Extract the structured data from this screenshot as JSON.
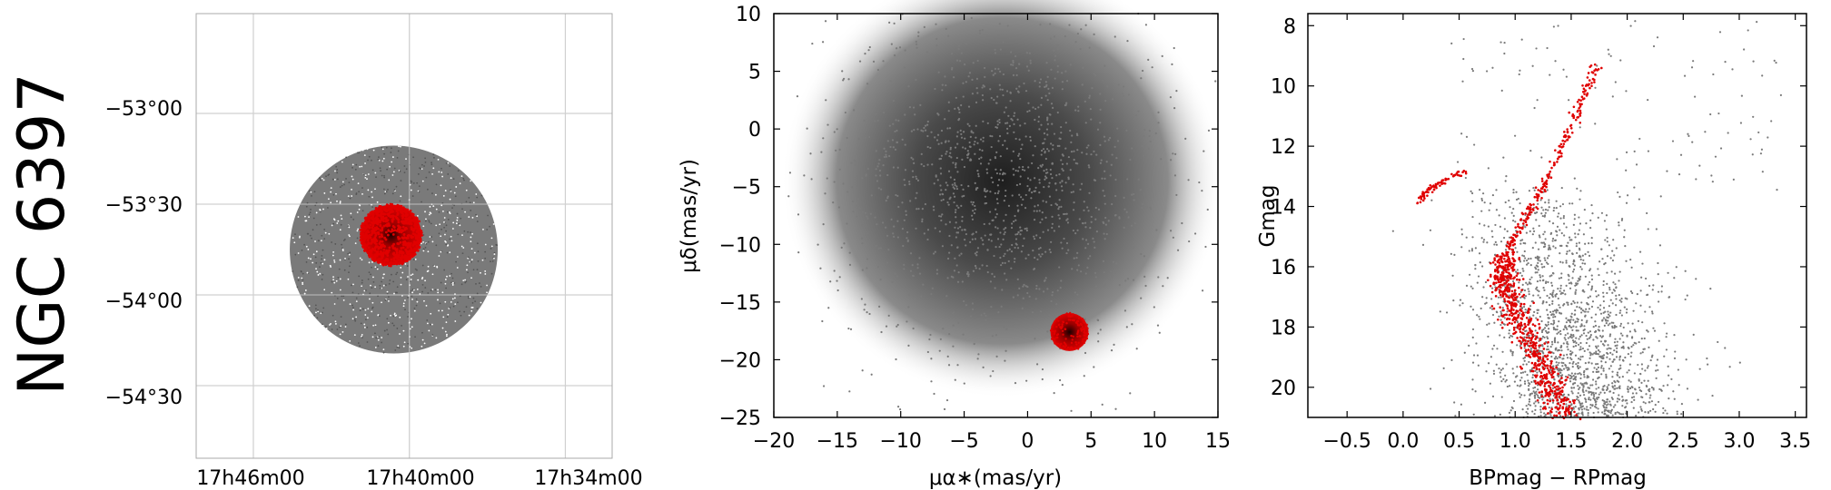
{
  "figure_title": "NGC 6397",
  "colors": {
    "field_stars": "#7a7a7a",
    "members": "#e00000",
    "frame": "#000000",
    "grid": "#d0d0d0"
  },
  "chart_data": [
    {
      "type": "scatter",
      "panel": "sky",
      "title": "",
      "xlabel": "",
      "ylabel": "",
      "ra_tick_labels": [
        "17h46m00",
        "17h40m00",
        "17h34m00"
      ],
      "dec_tick_labels": [
        "−53°00",
        "−53°30",
        "−54°00",
        "−54°30"
      ],
      "ra_ticks_deg": [
        266.5,
        265.0,
        263.5
      ],
      "dec_ticks_deg": [
        -53.0,
        -53.5,
        -54.0,
        -54.5
      ],
      "x_range_deg": [
        267.05,
        263.05
      ],
      "y_range_deg": [
        -52.45,
        -54.9
      ],
      "field_center_deg": [
        265.15,
        -53.75
      ],
      "field_radius_deg": 1.0,
      "cluster_center_deg": [
        265.175,
        -53.67
      ],
      "cluster_radius_deg": 0.3,
      "grid": true,
      "series": [
        {
          "color": "#7a7a7a"
        },
        {
          "color": "#e00000"
        }
      ]
    },
    {
      "type": "scatter",
      "panel": "proper_motion",
      "title": "",
      "xlabel": "μα∗(mas/yr)",
      "ylabel": "μδ(mas/yr)",
      "xlim": [
        -20,
        15
      ],
      "ylim": [
        -25,
        10
      ],
      "xticks": [
        -20,
        -15,
        -10,
        -5,
        0,
        5,
        10,
        15
      ],
      "yticks": [
        10,
        5,
        0,
        -5,
        -10,
        -15,
        -20,
        -25
      ],
      "grid": false,
      "field_center": [
        -2.0,
        -4.5
      ],
      "field_spread": [
        6.0,
        6.5
      ],
      "cluster_center": [
        3.3,
        -17.6
      ],
      "cluster_radius": 1.5,
      "series": [
        {
          "color": "#7a7a7a"
        },
        {
          "color": "#e00000"
        }
      ]
    },
    {
      "type": "scatter",
      "panel": "color_magnitude",
      "title": "",
      "xlabel": "BPmag − RPmag",
      "ylabel": "Gmag",
      "xlim": [
        -0.85,
        3.6
      ],
      "ylim": [
        21.0,
        7.6
      ],
      "xticks": [
        -0.5,
        0.0,
        0.5,
        1.0,
        1.5,
        2.0,
        2.5,
        3.0,
        3.5
      ],
      "xtick_labels": [
        "−0.5",
        "0.0",
        "0.5",
        "1.0",
        "1.5",
        "2.0",
        "2.5",
        "3.0",
        "3.5"
      ],
      "yticks": [
        8,
        10,
        12,
        14,
        16,
        18,
        20
      ],
      "ytick_labels": [
        "8",
        "10",
        "12",
        "14",
        "16",
        "18",
        "20"
      ],
      "grid": false,
      "main_sequence_ridge": [
        [
          0.92,
          15.6
        ],
        [
          0.9,
          16.3
        ],
        [
          0.95,
          17.0
        ],
        [
          1.05,
          17.8
        ],
        [
          1.15,
          18.6
        ],
        [
          1.25,
          19.4
        ],
        [
          1.35,
          20.2
        ],
        [
          1.45,
          21.0
        ]
      ],
      "red_giant_branch": [
        [
          1.72,
          9.3
        ],
        [
          1.6,
          10.5
        ],
        [
          1.45,
          11.8
        ],
        [
          1.3,
          13.0
        ],
        [
          1.15,
          14.0
        ],
        [
          1.0,
          15.0
        ],
        [
          0.93,
          15.6
        ]
      ],
      "horizontal_branch": [
        [
          0.15,
          13.9
        ],
        [
          0.2,
          13.6
        ],
        [
          0.3,
          13.3
        ],
        [
          0.45,
          13.0
        ],
        [
          0.55,
          12.8
        ]
      ],
      "series": [
        {
          "color": "#7a7a7a"
        },
        {
          "color": "#e00000"
        }
      ]
    }
  ]
}
